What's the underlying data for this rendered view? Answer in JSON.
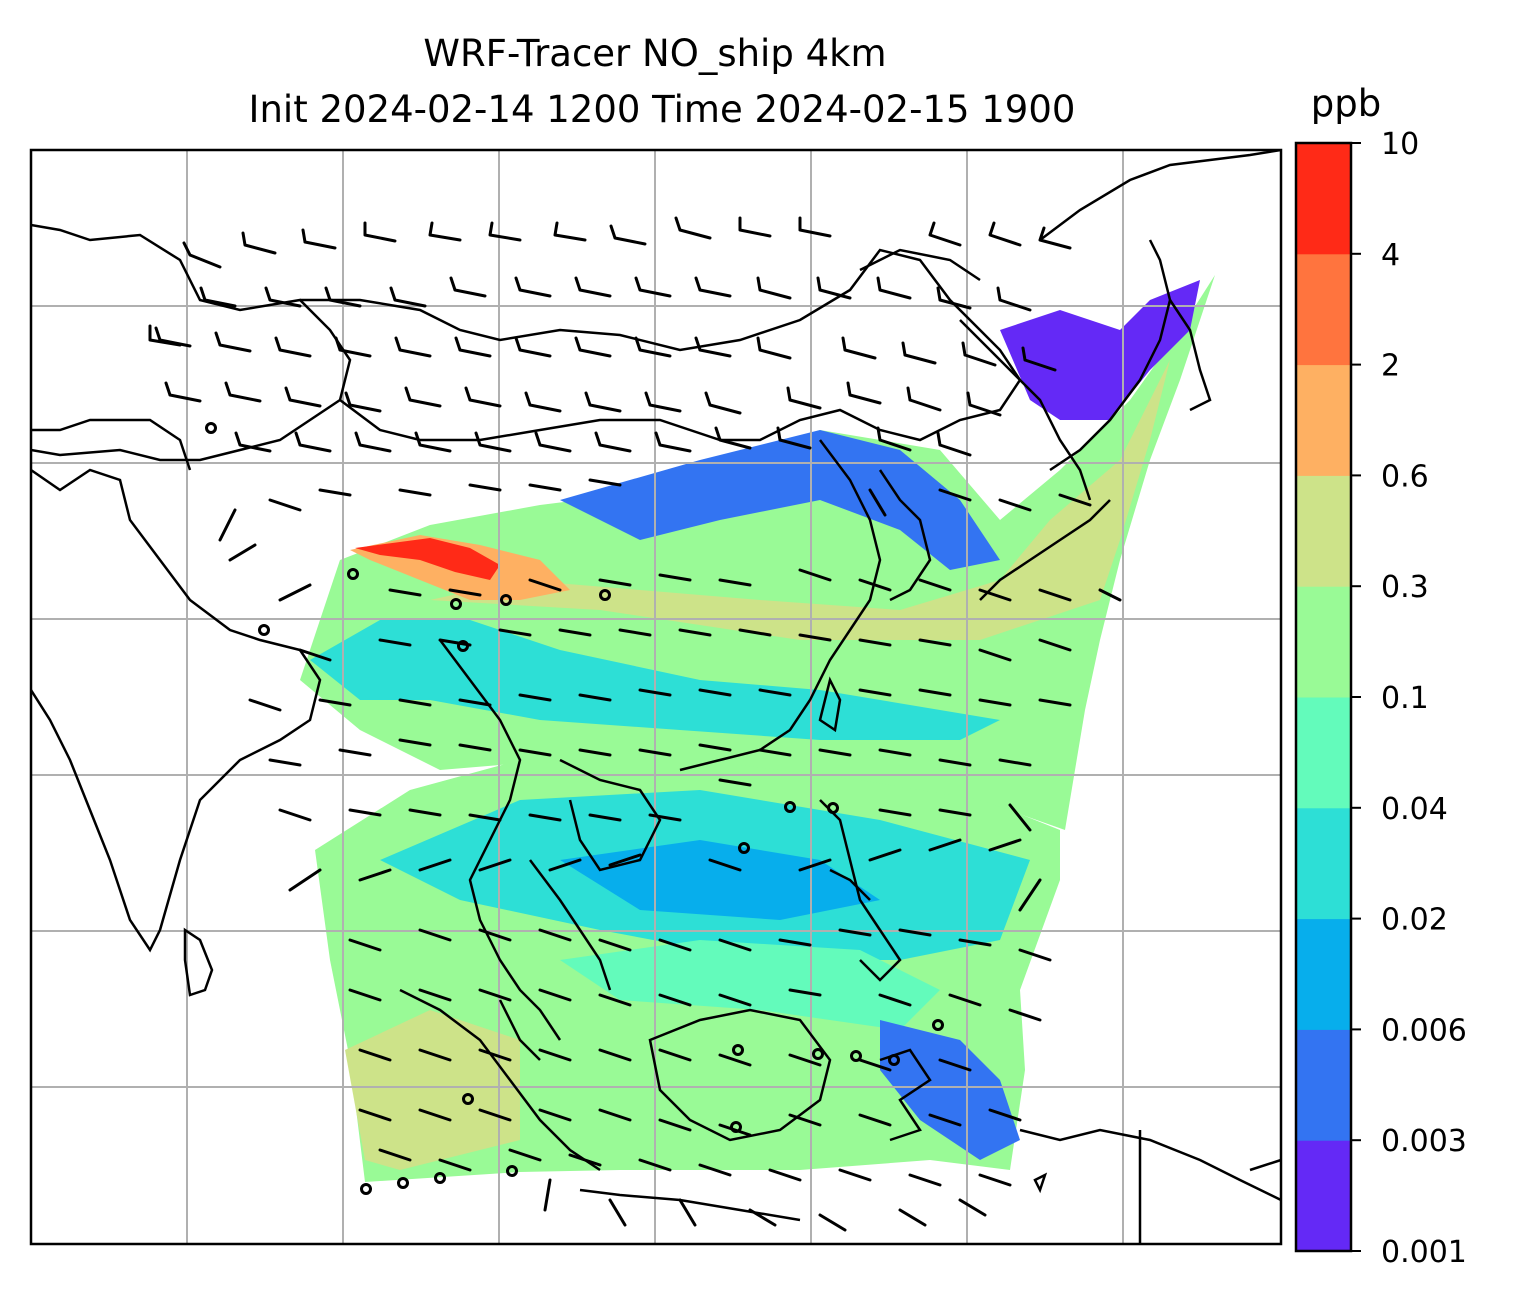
{
  "title": {
    "line1": "WRF-Tracer NO_ship 4km",
    "line2": "Init 2024-02-14 1200 Time 2024-02-15 1900"
  },
  "colorbar": {
    "unit": "ppb",
    "levels": [
      "0.001",
      "0.003",
      "0.006",
      "0.02",
      "0.04",
      "0.1",
      "0.3",
      "0.6",
      "2",
      "4",
      "10"
    ],
    "colors": [
      "#6429f6",
      "#3374f2",
      "#07aeec",
      "#2ddfd6",
      "#63fbbb",
      "#99fa96",
      "#cde389",
      "#feb062",
      "#ff743e",
      "#ff2a17"
    ]
  },
  "map": {
    "background": "#ffffff",
    "coastline_color": "#000000",
    "gridline_color": "#b0b0b0",
    "barb_color": "#000000"
  }
}
